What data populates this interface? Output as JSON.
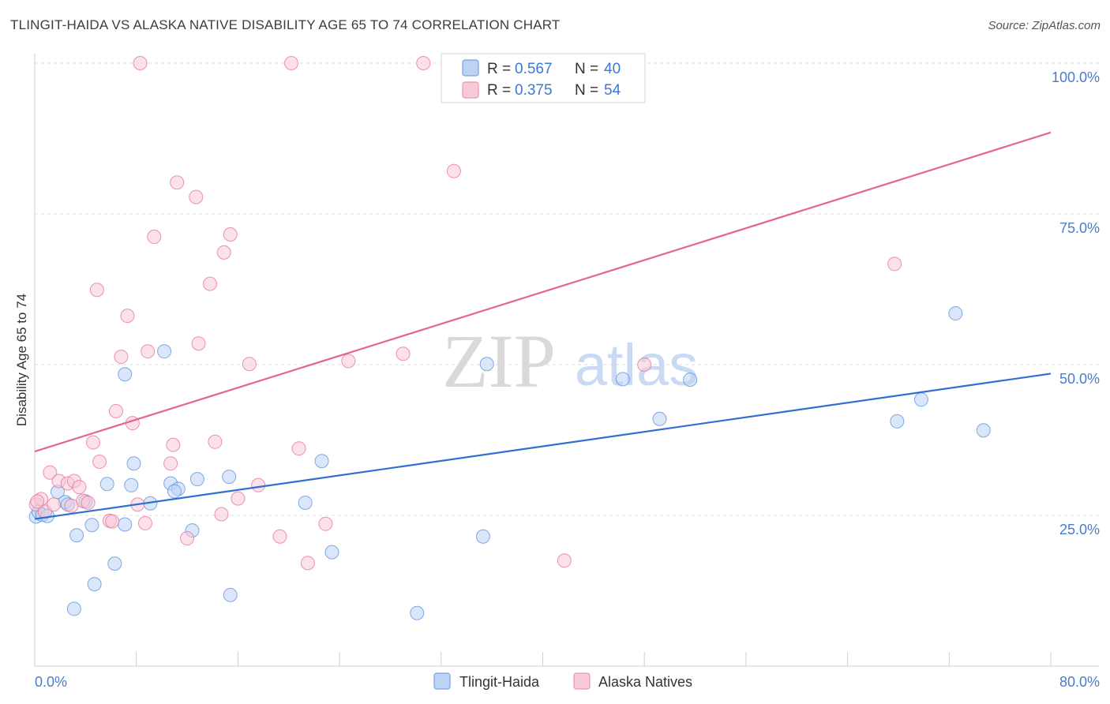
{
  "title": "TLINGIT-HAIDA VS ALASKA NATIVE DISABILITY AGE 65 TO 74 CORRELATION CHART",
  "source": "Source: ZipAtlas.com",
  "watermark": {
    "zip": "ZIP",
    "atlas": "atlas"
  },
  "legend": {
    "r_label": "R =",
    "n_label": "N =",
    "rows": [
      {
        "r": "0.567",
        "n": "40",
        "fill": "#bcd3f5",
        "stroke": "#7aa3e0"
      },
      {
        "r": "0.375",
        "n": "54",
        "fill": "#f8c9d7",
        "stroke": "#ec96b1"
      }
    ]
  },
  "chart_data": {
    "type": "scatter",
    "title": "TLINGIT-HAIDA VS ALASKA NATIVE DISABILITY AGE 65 TO 74 CORRELATION CHART",
    "xlabel": "",
    "ylabel": "Disability Age 65 to 74",
    "xlim": [
      0,
      80
    ],
    "ylim": [
      0,
      100
    ],
    "x_tick_labels": [
      "0.0%",
      "80.0%"
    ],
    "y_ticks": [
      25,
      50,
      75,
      100
    ],
    "y_tick_labels": [
      "25.0%",
      "50.0%",
      "75.0%",
      "100.0%"
    ],
    "grid": true,
    "legend_position": "top-center",
    "series": [
      {
        "name": "Tlingit-Haida",
        "color": "#5b8fd9",
        "fill": "#bcd3f5",
        "r": 0.567,
        "n": 40,
        "trend": {
          "x": [
            0,
            80
          ],
          "y": [
            24.4,
            48.5
          ]
        },
        "points": [
          [
            0.1,
            24.8
          ],
          [
            0.3,
            25.6
          ],
          [
            0.6,
            25.1
          ],
          [
            1.0,
            24.9
          ],
          [
            1.8,
            28.9
          ],
          [
            2.4,
            27.2
          ],
          [
            2.6,
            26.8
          ],
          [
            4.0,
            27.3
          ],
          [
            3.3,
            21.7
          ],
          [
            4.5,
            23.4
          ],
          [
            5.7,
            30.2
          ],
          [
            4.7,
            13.6
          ],
          [
            6.3,
            17.0
          ],
          [
            3.1,
            9.5
          ],
          [
            7.1,
            23.5
          ],
          [
            7.6,
            30.0
          ],
          [
            7.8,
            33.6
          ],
          [
            7.1,
            48.4
          ],
          [
            9.1,
            27.0
          ],
          [
            10.2,
            52.2
          ],
          [
            10.7,
            30.3
          ],
          [
            11.3,
            29.4
          ],
          [
            11.0,
            29.0
          ],
          [
            12.4,
            22.5
          ],
          [
            12.8,
            31.0
          ],
          [
            15.3,
            31.4
          ],
          [
            15.4,
            11.8
          ],
          [
            21.3,
            27.1
          ],
          [
            22.6,
            34.0
          ],
          [
            23.4,
            18.9
          ],
          [
            30.1,
            8.8
          ],
          [
            35.3,
            21.5
          ],
          [
            35.6,
            50.1
          ],
          [
            46.3,
            47.6
          ],
          [
            49.2,
            41.0
          ],
          [
            51.6,
            47.5
          ],
          [
            67.9,
            40.6
          ],
          [
            69.8,
            44.2
          ],
          [
            72.5,
            58.5
          ],
          [
            74.7,
            39.1
          ]
        ]
      },
      {
        "name": "Alaska Natives",
        "color": "#e86f97",
        "fill": "#f8c9d7",
        "r": 0.375,
        "n": 54,
        "trend": {
          "x": [
            0,
            80
          ],
          "y": [
            35.6,
            88.5
          ]
        },
        "points": [
          [
            0.1,
            26.8
          ],
          [
            0.5,
            27.7
          ],
          [
            0.8,
            25.6
          ],
          [
            1.2,
            32.1
          ],
          [
            1.5,
            26.8
          ],
          [
            1.9,
            30.7
          ],
          [
            2.6,
            30.3
          ],
          [
            2.9,
            26.6
          ],
          [
            3.1,
            30.7
          ],
          [
            3.5,
            29.7
          ],
          [
            3.8,
            27.4
          ],
          [
            4.2,
            27.1
          ],
          [
            4.6,
            37.1
          ],
          [
            4.9,
            62.4
          ],
          [
            5.1,
            33.9
          ],
          [
            5.9,
            24.1
          ],
          [
            6.1,
            24.0
          ],
          [
            6.4,
            42.3
          ],
          [
            6.8,
            51.3
          ],
          [
            7.3,
            58.1
          ],
          [
            7.7,
            40.3
          ],
          [
            8.1,
            26.8
          ],
          [
            8.3,
            100.0
          ],
          [
            8.7,
            23.7
          ],
          [
            8.9,
            52.2
          ],
          [
            9.4,
            71.2
          ],
          [
            10.7,
            33.6
          ],
          [
            10.9,
            36.7
          ],
          [
            11.2,
            80.2
          ],
          [
            12.0,
            21.2
          ],
          [
            12.7,
            77.8
          ],
          [
            12.9,
            53.5
          ],
          [
            13.8,
            63.4
          ],
          [
            14.2,
            37.2
          ],
          [
            14.7,
            25.2
          ],
          [
            14.9,
            68.6
          ],
          [
            15.4,
            71.6
          ],
          [
            16.0,
            27.8
          ],
          [
            16.9,
            50.1
          ],
          [
            17.6,
            30.0
          ],
          [
            19.3,
            21.5
          ],
          [
            20.2,
            100.0
          ],
          [
            20.8,
            36.1
          ],
          [
            21.5,
            17.1
          ],
          [
            22.9,
            23.6
          ],
          [
            24.7,
            50.6
          ],
          [
            29.0,
            51.8
          ],
          [
            30.6,
            100.0
          ],
          [
            33.0,
            82.1
          ],
          [
            41.7,
            17.5
          ],
          [
            44.8,
            100.0
          ],
          [
            48.0,
            50.0
          ],
          [
            67.7,
            66.7
          ],
          [
            0.2,
            27.3
          ]
        ]
      }
    ]
  },
  "bottom_legend": [
    {
      "label": "Tlingit-Haida",
      "fill": "#bcd3f5",
      "stroke": "#7aa3e0"
    },
    {
      "label": "Alaska Natives",
      "fill": "#f8c9d7",
      "stroke": "#ec96b1"
    }
  ]
}
